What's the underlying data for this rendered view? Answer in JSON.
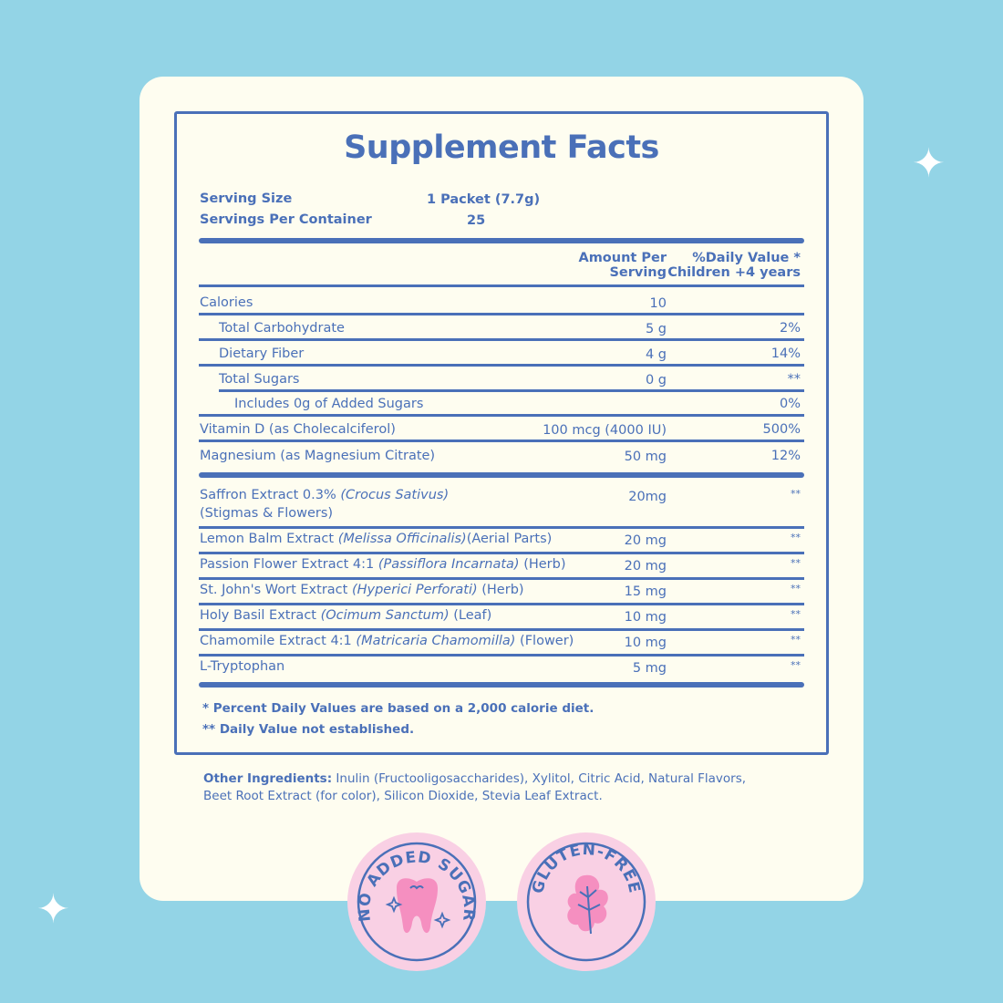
{
  "colors": {
    "background": "#93d4e6",
    "card": "#fefdf0",
    "accent": "#4a70b8",
    "badge_pink": "#f9d0e4",
    "badge_icon": "#f58fc0"
  },
  "title": "Supplement Facts",
  "serving": {
    "size_label": "Serving Size",
    "size_value": "1 Packet (7.7g)",
    "per_container_label": "Servings Per Container",
    "per_container_value": "25"
  },
  "header": {
    "amount_line1": "Amount Per",
    "amount_line2": "Serving",
    "dv_line1": "%Daily Value *",
    "dv_line2": "Children +4 years"
  },
  "nutrients": [
    {
      "name": "Calories",
      "amount": "10",
      "dv": ""
    },
    {
      "name": "Total Carbohydrate",
      "amount": "5 g",
      "dv": "2%"
    },
    {
      "name": "Dietary Fiber",
      "amount": "4 g",
      "dv": "14%"
    },
    {
      "name": "Total Sugars",
      "amount": "0 g",
      "dv": "**"
    },
    {
      "name": "Includes 0g of Added Sugars",
      "amount": "",
      "dv": "0%"
    },
    {
      "name": "Vitamin D (as Cholecalciferol)",
      "amount": "100 mcg (4000 IU)",
      "dv": "500%"
    },
    {
      "name": "Magnesium  (as Magnesium Citrate)",
      "amount": "50 mg",
      "dv": "12%"
    }
  ],
  "extracts": [
    {
      "name": "Saffron Extract 0.3% ",
      "latin": "(Crocus Sativus)",
      "part": "",
      "line2": "(Stigmas & Flowers)",
      "amount": "20mg",
      "dv": "**"
    },
    {
      "name": "Lemon Balm Extract ",
      "latin": "(Melissa Officinalis)",
      "part": "(Aerial Parts)",
      "amount": "20 mg",
      "dv": "**"
    },
    {
      "name": "Passion Flower Extract 4:1 ",
      "latin": "(Passiflora Incarnata)",
      "part": " (Herb)",
      "amount": "20 mg",
      "dv": "**"
    },
    {
      "name": "St. John's Wort Extract  ",
      "latin": "(Hyperici Perforati)",
      "part": " (Herb)",
      "amount": "15 mg",
      "dv": "**"
    },
    {
      "name": "Holy Basil Extract  ",
      "latin": "(Ocimum Sanctum)",
      "part": " (Leaf)",
      "amount": "10 mg",
      "dv": "**"
    },
    {
      "name": "Chamomile Extract 4:1 ",
      "latin": "(Matricaria Chamomilla)",
      "part": " (Flower)",
      "amount": "10 mg",
      "dv": "**"
    },
    {
      "name": "L-Tryptophan",
      "latin": "",
      "part": "",
      "amount": "5 mg",
      "dv": "**"
    }
  ],
  "footnotes": [
    "* Percent Daily Values are based on a 2,000 calorie diet.",
    "** Daily Value not established."
  ],
  "other_ingredients": {
    "label": "Other Ingredients:",
    "line1": " Inulin (Fructooligosaccharides), Xylitol, Citric Acid, Natural Flavors,",
    "line2": "Beet Root Extract (for color), Silicon Dioxide, Stevia Leaf Extract."
  },
  "badges": [
    {
      "text": "NO ADDED SUGAR",
      "icon": "tooth-icon"
    },
    {
      "text": "GLUTEN-FREE",
      "icon": "leaf-icon"
    }
  ]
}
